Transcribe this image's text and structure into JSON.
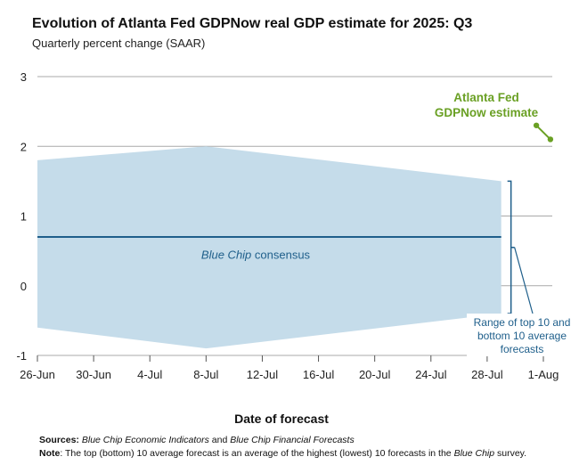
{
  "chart_data": {
    "type": "area",
    "title": "Evolution of Atlanta Fed GDPNow real GDP estimate for 2025: Q3",
    "subtitle": "Quarterly percent change (SAAR)",
    "xlabel": "Date of forecast",
    "ylabel": "",
    "ylim": [
      -1,
      3
    ],
    "yticks": [
      "3",
      "2",
      "1",
      "0",
      "-1"
    ],
    "ytick_values": [
      3,
      2,
      1,
      0,
      -1
    ],
    "xticks": [
      "26-Jun",
      "30-Jun",
      "4-Jul",
      "8-Jul",
      "12-Jul",
      "16-Jul",
      "20-Jul",
      "24-Jul",
      "28-Jul",
      "1-Aug"
    ],
    "xtick_days": [
      0,
      4,
      8,
      12,
      16,
      20,
      24,
      28,
      32,
      36
    ],
    "xlim_days": [
      0,
      37
    ],
    "grid": true,
    "range_band": {
      "name": "Range of top 10 and bottom 10 average forecasts",
      "x_days": [
        0,
        12,
        33
      ],
      "upper": [
        1.8,
        2.0,
        1.5
      ],
      "lower": [
        -0.6,
        -0.9,
        -0.4
      ],
      "color": "#c5dcea"
    },
    "consensus": {
      "name_italic": "Blue Chip",
      "name_rest": " consensus",
      "x_days": [
        0,
        33
      ],
      "values": [
        0.7,
        0.7
      ],
      "color": "#1f5f8b"
    },
    "gdpnow": {
      "name_line1": "Atlanta Fed",
      "name_line2": "GDPNow estimate",
      "x_days": [
        35.5,
        36.5
      ],
      "values": [
        2.3,
        2.1
      ],
      "color": "#6aa024"
    },
    "range_label_lines": [
      "Range of top 10 and",
      "bottom 10 average",
      "forecasts"
    ],
    "range_label_color": "#1f5f8b"
  },
  "footer": {
    "sources_label": "Sources:",
    "sources_part1": "Blue Chip Economic Indicators",
    "sources_part2": " and ",
    "sources_part3": "Blue Chip Financial Forecasts",
    "note_label": "Note",
    "note_part1": ": The top (bottom) 10 average forecast is an average of the highest (lowest) 10 forecasts in the ",
    "note_part2": "Blue Chip",
    "note_part3": " survey."
  }
}
